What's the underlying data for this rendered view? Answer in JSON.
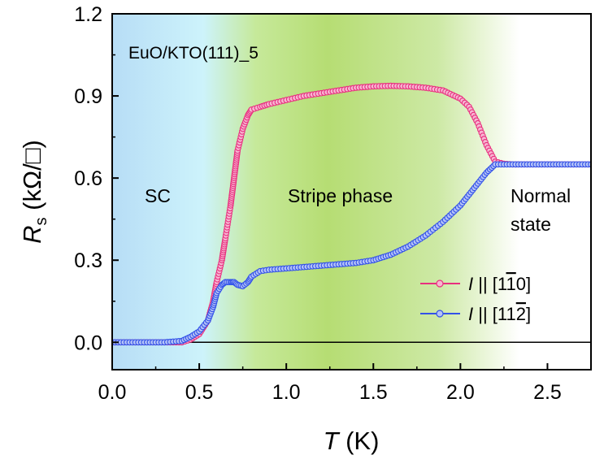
{
  "chart_data": {
    "type": "scatter",
    "sample_label": "EuO/KTO(111)_5",
    "xlabel": "T (K)",
    "xlabel_italic": "T",
    "xlabel_unit": " (K)",
    "ylabel_italic": "R",
    "ylabel_sub": "s",
    "ylabel_unit": " (kΩ/□)",
    "xlim": [
      0,
      2.75
    ],
    "ylim": [
      -0.1,
      1.2
    ],
    "xticks": [
      0.0,
      0.5,
      1.0,
      1.5,
      2.0,
      2.5
    ],
    "xtick_labels": [
      "0.0",
      "0.5",
      "1.0",
      "1.5",
      "2.0",
      "2.5"
    ],
    "yticks": [
      0.0,
      0.3,
      0.6,
      0.9,
      1.2
    ],
    "ytick_labels": [
      "0.0",
      "0.3",
      "0.6",
      "0.9",
      "1.2"
    ],
    "zero_line": true,
    "regions": [
      {
        "label": "SC",
        "x_start": 0.0,
        "x_end": 0.65,
        "color": "#bfe6f8"
      },
      {
        "label": "Stripe phase",
        "x_start": 0.65,
        "x_end": 2.2,
        "color": "#b9e07e"
      },
      {
        "label_line1": "Normal",
        "label_line2": "state",
        "x_start": 2.2,
        "x_end": 2.75,
        "color": "#ffffff"
      }
    ],
    "legend": {
      "placement": "lower-right"
    },
    "series": [
      {
        "name_italic": "I",
        "name_mid": " || [1",
        "name_over": "1",
        "name_after": "0]",
        "color": "#e8307f",
        "x": [
          0.0,
          0.1,
          0.2,
          0.3,
          0.4,
          0.45,
          0.5,
          0.55,
          0.58,
          0.6,
          0.63,
          0.65,
          0.68,
          0.7,
          0.72,
          0.75,
          0.78,
          0.8,
          0.85,
          0.9,
          1.0,
          1.1,
          1.2,
          1.3,
          1.4,
          1.5,
          1.6,
          1.7,
          1.8,
          1.9,
          2.0,
          2.05,
          2.1,
          2.15,
          2.2,
          2.25,
          2.3,
          2.4,
          2.5,
          2.6,
          2.7,
          2.75
        ],
        "y": [
          0.0,
          0.0,
          0.0,
          0.0,
          0.0,
          0.01,
          0.03,
          0.08,
          0.15,
          0.22,
          0.3,
          0.38,
          0.5,
          0.6,
          0.7,
          0.78,
          0.83,
          0.85,
          0.86,
          0.87,
          0.885,
          0.9,
          0.91,
          0.92,
          0.93,
          0.935,
          0.937,
          0.935,
          0.93,
          0.92,
          0.89,
          0.86,
          0.8,
          0.72,
          0.66,
          0.652,
          0.65,
          0.65,
          0.65,
          0.65,
          0.65,
          0.65
        ]
      },
      {
        "name_italic": "I",
        "name_mid": " || [11",
        "name_over": "2",
        "name_after": "]",
        "color": "#3352e8",
        "x": [
          0.0,
          0.1,
          0.2,
          0.3,
          0.4,
          0.45,
          0.5,
          0.55,
          0.58,
          0.6,
          0.63,
          0.65,
          0.68,
          0.7,
          0.72,
          0.75,
          0.78,
          0.8,
          0.85,
          0.9,
          1.0,
          1.1,
          1.2,
          1.3,
          1.4,
          1.5,
          1.6,
          1.7,
          1.8,
          1.9,
          2.0,
          2.05,
          2.1,
          2.15,
          2.2,
          2.25,
          2.3,
          2.4,
          2.5,
          2.6,
          2.7,
          2.75
        ],
        "y": [
          0.0,
          0.0,
          0.0,
          0.0,
          0.005,
          0.02,
          0.04,
          0.08,
          0.13,
          0.18,
          0.21,
          0.22,
          0.22,
          0.22,
          0.21,
          0.205,
          0.22,
          0.24,
          0.26,
          0.265,
          0.27,
          0.275,
          0.28,
          0.285,
          0.29,
          0.3,
          0.32,
          0.35,
          0.39,
          0.44,
          0.5,
          0.54,
          0.58,
          0.62,
          0.65,
          0.65,
          0.65,
          0.65,
          0.65,
          0.65,
          0.65,
          0.65
        ]
      }
    ]
  }
}
